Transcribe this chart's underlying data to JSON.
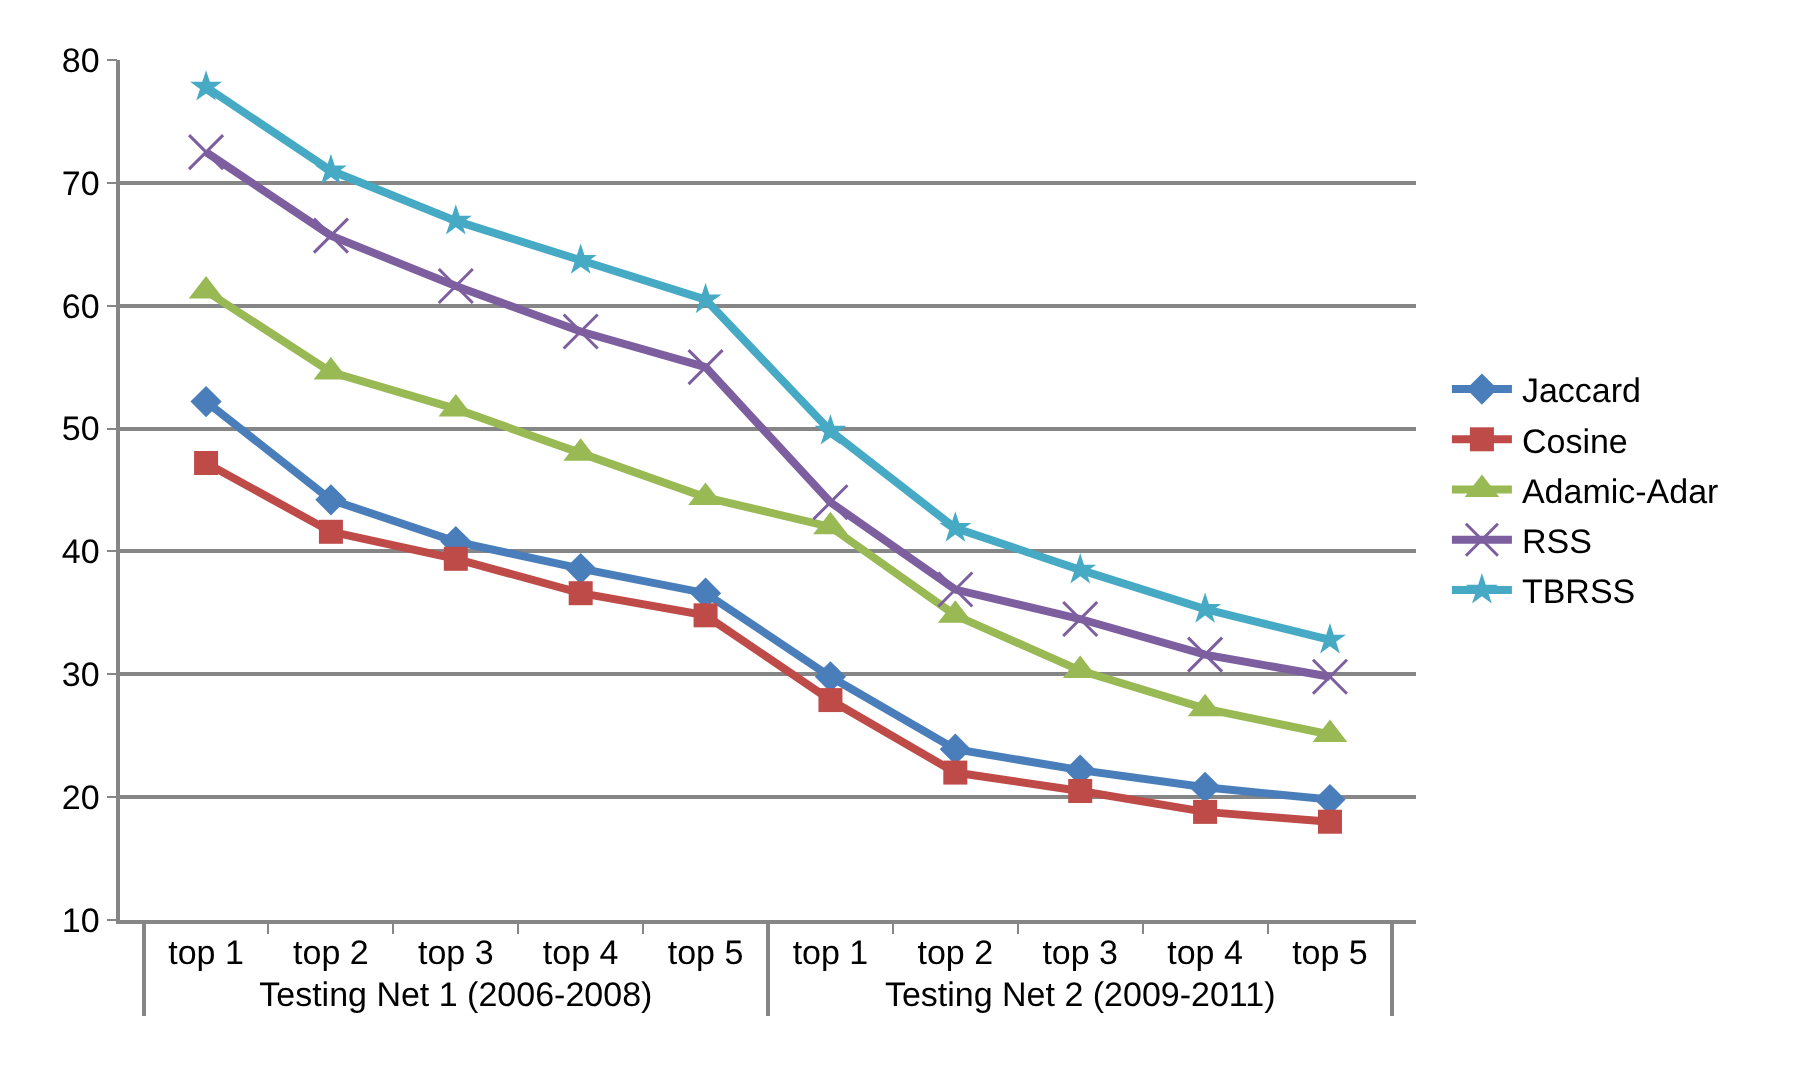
{
  "chart_data": {
    "type": "line",
    "categories": [
      "top 1",
      "top 2",
      "top 3",
      "top 4",
      "top 5",
      "top 1",
      "top 2",
      "top 3",
      "top 4",
      "top 5"
    ],
    "annotations": [
      "Testing Net 1 (2006-2008)",
      "Testing Net 2 (2009-2011)"
    ],
    "series": [
      {
        "name": "Jaccard",
        "color": "#4a7ebb",
        "marker": "diamond",
        "values": [
          52.2,
          44.2,
          40.8,
          38.6,
          36.6,
          29.8,
          23.9,
          22.2,
          20.8,
          19.8
        ]
      },
      {
        "name": "Cosine",
        "color": "#be4b48",
        "marker": "square",
        "values": [
          47.2,
          41.6,
          39.4,
          36.6,
          34.8,
          27.9,
          22.0,
          20.5,
          18.8,
          18.0
        ]
      },
      {
        "name": "Adamic-Adar",
        "color": "#98b954",
        "marker": "triangle",
        "values": [
          61.2,
          54.6,
          51.6,
          48.0,
          44.4,
          42.0,
          34.8,
          30.3,
          27.2,
          25.1
        ]
      },
      {
        "name": "RSS",
        "color": "#7d5fa0",
        "marker": "cross",
        "values": [
          72.5,
          65.7,
          61.6,
          57.9,
          55.0,
          44.0,
          36.9,
          34.5,
          31.6,
          29.8
        ]
      },
      {
        "name": "TBRSS",
        "color": "#46aac5",
        "marker": "star",
        "values": [
          77.8,
          71.0,
          66.9,
          63.7,
          60.5,
          49.8,
          41.9,
          38.5,
          35.3,
          32.8
        ]
      }
    ],
    "ylim": [
      10,
      80
    ],
    "yticks": [
      10,
      20,
      30,
      40,
      50,
      60,
      70,
      80
    ],
    "grid": "y",
    "legend": "right",
    "line_style": "solid"
  }
}
